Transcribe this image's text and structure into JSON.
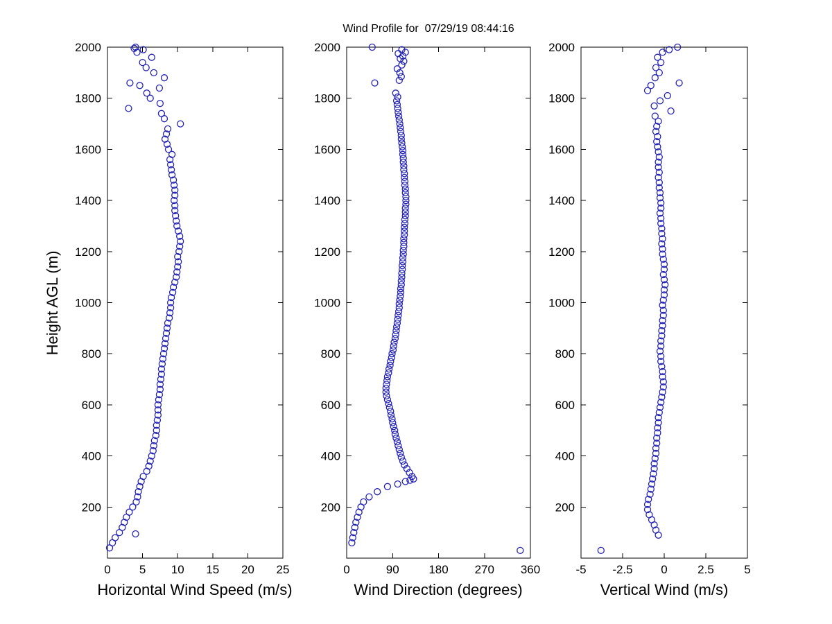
{
  "title": "Wind Profile for  07/29/19 08:44:16",
  "colors": {
    "marker": "#2222b4",
    "axis": "#000000",
    "background": "#ffffff"
  },
  "chart_data": [
    {
      "type": "scatter",
      "title": "Wind Profile for  07/29/19 08:44:16",
      "xlabel": "Horizontal Wind Speed (m/s)",
      "ylabel": "Height AGL (m)",
      "xlim": [
        0,
        25
      ],
      "ylim": [
        0,
        2000
      ],
      "xticks": [
        0,
        5,
        10,
        15,
        20,
        25
      ],
      "yticks": [
        0,
        200,
        400,
        600,
        800,
        1000,
        1200,
        1400,
        1600,
        1800,
        2000
      ],
      "marker": "open-circle",
      "grid": false,
      "points": [
        [
          0.3,
          40
        ],
        [
          0.7,
          60
        ],
        [
          1.1,
          80
        ],
        [
          4.0,
          95
        ],
        [
          1.7,
          100
        ],
        [
          2.1,
          120
        ],
        [
          2.4,
          140
        ],
        [
          2.7,
          160
        ],
        [
          3.1,
          180
        ],
        [
          3.6,
          200
        ],
        [
          4.1,
          220
        ],
        [
          4.3,
          240
        ],
        [
          4.4,
          260
        ],
        [
          4.6,
          280
        ],
        [
          4.8,
          300
        ],
        [
          5.1,
          320
        ],
        [
          5.6,
          340
        ],
        [
          5.9,
          360
        ],
        [
          6.1,
          380
        ],
        [
          6.3,
          400
        ],
        [
          6.5,
          420
        ],
        [
          6.6,
          440
        ],
        [
          6.7,
          460
        ],
        [
          6.9,
          480
        ],
        [
          7.0,
          500
        ],
        [
          7.0,
          520
        ],
        [
          7.1,
          540
        ],
        [
          7.2,
          560
        ],
        [
          7.2,
          580
        ],
        [
          7.2,
          600
        ],
        [
          7.3,
          620
        ],
        [
          7.4,
          640
        ],
        [
          7.5,
          660
        ],
        [
          7.5,
          680
        ],
        [
          7.6,
          700
        ],
        [
          7.7,
          720
        ],
        [
          7.7,
          740
        ],
        [
          7.8,
          760
        ],
        [
          7.9,
          780
        ],
        [
          8.0,
          800
        ],
        [
          8.1,
          820
        ],
        [
          8.2,
          840
        ],
        [
          8.3,
          860
        ],
        [
          8.4,
          880
        ],
        [
          8.5,
          900
        ],
        [
          8.6,
          920
        ],
        [
          8.8,
          940
        ],
        [
          8.9,
          960
        ],
        [
          9.0,
          980
        ],
        [
          9.0,
          1000
        ],
        [
          9.1,
          1020
        ],
        [
          9.3,
          1040
        ],
        [
          9.4,
          1060
        ],
        [
          9.6,
          1080
        ],
        [
          9.8,
          1100
        ],
        [
          9.9,
          1120
        ],
        [
          10.0,
          1140
        ],
        [
          10.1,
          1160
        ],
        [
          10.0,
          1180
        ],
        [
          10.2,
          1200
        ],
        [
          10.3,
          1220
        ],
        [
          10.4,
          1240
        ],
        [
          10.3,
          1260
        ],
        [
          10.1,
          1280
        ],
        [
          9.9,
          1300
        ],
        [
          9.8,
          1320
        ],
        [
          9.7,
          1340
        ],
        [
          9.6,
          1360
        ],
        [
          9.6,
          1380
        ],
        [
          9.5,
          1400
        ],
        [
          9.6,
          1420
        ],
        [
          9.6,
          1440
        ],
        [
          9.5,
          1460
        ],
        [
          9.4,
          1480
        ],
        [
          9.2,
          1500
        ],
        [
          9.1,
          1520
        ],
        [
          9.0,
          1540
        ],
        [
          8.9,
          1560
        ],
        [
          9.2,
          1580
        ],
        [
          8.7,
          1600
        ],
        [
          8.5,
          1620
        ],
        [
          8.2,
          1640
        ],
        [
          8.4,
          1660
        ],
        [
          8.6,
          1680
        ],
        [
          10.4,
          1700
        ],
        [
          8.1,
          1720
        ],
        [
          7.7,
          1740
        ],
        [
          3.0,
          1760
        ],
        [
          7.5,
          1780
        ],
        [
          6.1,
          1800
        ],
        [
          5.6,
          1820
        ],
        [
          7.4,
          1840
        ],
        [
          4.6,
          1850
        ],
        [
          3.2,
          1860
        ],
        [
          8.1,
          1880
        ],
        [
          6.6,
          1900
        ],
        [
          5.5,
          1920
        ],
        [
          5.0,
          1940
        ],
        [
          6.3,
          1960
        ],
        [
          4.2,
          1980
        ],
        [
          5.1,
          1990
        ],
        [
          3.8,
          1995
        ],
        [
          4.0,
          2000
        ]
      ]
    },
    {
      "type": "scatter",
      "xlabel": "Wind Direction (degrees)",
      "xlim": [
        0,
        360
      ],
      "ylim": [
        0,
        2000
      ],
      "xticks": [
        0,
        90,
        180,
        270,
        360
      ],
      "yticks": [
        0,
        200,
        400,
        600,
        800,
        1000,
        1200,
        1400,
        1600,
        1800,
        2000
      ],
      "marker": "open-circle",
      "grid": false,
      "points": [
        [
          340,
          30
        ],
        [
          10,
          60
        ],
        [
          12,
          80
        ],
        [
          14,
          100
        ],
        [
          16,
          120
        ],
        [
          18,
          140
        ],
        [
          21,
          160
        ],
        [
          24,
          180
        ],
        [
          28,
          200
        ],
        [
          33,
          220
        ],
        [
          44,
          240
        ],
        [
          60,
          260
        ],
        [
          80,
          280
        ],
        [
          100,
          290
        ],
        [
          115,
          300
        ],
        [
          124,
          305
        ],
        [
          131,
          310
        ],
        [
          128,
          320
        ],
        [
          123,
          335
        ],
        [
          118,
          350
        ],
        [
          113,
          365
        ],
        [
          110,
          380
        ],
        [
          107,
          395
        ],
        [
          105,
          410
        ],
        [
          103,
          425
        ],
        [
          101,
          440
        ],
        [
          99,
          455
        ],
        [
          97,
          470
        ],
        [
          95,
          485
        ],
        [
          94,
          500
        ],
        [
          92,
          515
        ],
        [
          90,
          530
        ],
        [
          89,
          545
        ],
        [
          87,
          560
        ],
        [
          86,
          575
        ],
        [
          84,
          590
        ],
        [
          82,
          605
        ],
        [
          80,
          620
        ],
        [
          78,
          635
        ],
        [
          77,
          650
        ],
        [
          77,
          665
        ],
        [
          78,
          680
        ],
        [
          79,
          695
        ],
        [
          80,
          710
        ],
        [
          82,
          725
        ],
        [
          83,
          740
        ],
        [
          85,
          755
        ],
        [
          86,
          770
        ],
        [
          88,
          785
        ],
        [
          89,
          800
        ],
        [
          91,
          815
        ],
        [
          92,
          830
        ],
        [
          93,
          845
        ],
        [
          95,
          860
        ],
        [
          96,
          875
        ],
        [
          97,
          890
        ],
        [
          98,
          905
        ],
        [
          99,
          920
        ],
        [
          100,
          935
        ],
        [
          101,
          950
        ],
        [
          102,
          965
        ],
        [
          103,
          980
        ],
        [
          103,
          995
        ],
        [
          104,
          1010
        ],
        [
          105,
          1025
        ],
        [
          106,
          1040
        ],
        [
          106,
          1055
        ],
        [
          107,
          1070
        ],
        [
          107,
          1085
        ],
        [
          108,
          1100
        ],
        [
          108,
          1115
        ],
        [
          109,
          1130
        ],
        [
          109,
          1145
        ],
        [
          110,
          1160
        ],
        [
          110,
          1175
        ],
        [
          111,
          1190
        ],
        [
          111,
          1205
        ],
        [
          112,
          1220
        ],
        [
          112,
          1235
        ],
        [
          112,
          1250
        ],
        [
          113,
          1265
        ],
        [
          113,
          1280
        ],
        [
          113,
          1295
        ],
        [
          114,
          1310
        ],
        [
          114,
          1325
        ],
        [
          115,
          1340
        ],
        [
          115,
          1355
        ],
        [
          115,
          1370
        ],
        [
          116,
          1385
        ],
        [
          116,
          1400
        ],
        [
          116,
          1415
        ],
        [
          115,
          1430
        ],
        [
          115,
          1445
        ],
        [
          114,
          1460
        ],
        [
          114,
          1475
        ],
        [
          113,
          1490
        ],
        [
          113,
          1505
        ],
        [
          112,
          1520
        ],
        [
          112,
          1535
        ],
        [
          111,
          1550
        ],
        [
          111,
          1565
        ],
        [
          110,
          1580
        ],
        [
          110,
          1595
        ],
        [
          109,
          1610
        ],
        [
          108,
          1625
        ],
        [
          107,
          1640
        ],
        [
          107,
          1655
        ],
        [
          106,
          1670
        ],
        [
          105,
          1685
        ],
        [
          104,
          1700
        ],
        [
          103,
          1715
        ],
        [
          102,
          1730
        ],
        [
          101,
          1745
        ],
        [
          100,
          1760
        ],
        [
          99,
          1775
        ],
        [
          98,
          1790
        ],
        [
          100,
          1805
        ],
        [
          96,
          1820
        ],
        [
          55,
          1860
        ],
        [
          103,
          1870
        ],
        [
          107,
          1885
        ],
        [
          104,
          1900
        ],
        [
          99,
          1915
        ],
        [
          108,
          1930
        ],
        [
          112,
          1945
        ],
        [
          105,
          1955
        ],
        [
          110,
          1965
        ],
        [
          101,
          1975
        ],
        [
          115,
          1980
        ],
        [
          108,
          1990
        ],
        [
          50,
          2000
        ]
      ]
    },
    {
      "type": "scatter",
      "xlabel": "Vertical Wind (m/s)",
      "xlim": [
        -5,
        5
      ],
      "ylim": [
        0,
        2000
      ],
      "xticks": [
        -5,
        -2.5,
        0,
        2.5,
        5
      ],
      "yticks": [
        0,
        200,
        400,
        600,
        800,
        1000,
        1200,
        1400,
        1600,
        1800,
        2000
      ],
      "marker": "open-circle",
      "grid": false,
      "points": [
        [
          -3.8,
          30
        ],
        [
          -0.35,
          90
        ],
        [
          -0.5,
          110
        ],
        [
          -0.6,
          130
        ],
        [
          -0.75,
          150
        ],
        [
          -0.9,
          170
        ],
        [
          -1.0,
          190
        ],
        [
          -1.0,
          210
        ],
        [
          -0.95,
          230
        ],
        [
          -0.85,
          250
        ],
        [
          -0.8,
          270
        ],
        [
          -0.75,
          290
        ],
        [
          -0.7,
          310
        ],
        [
          -0.65,
          330
        ],
        [
          -0.6,
          350
        ],
        [
          -0.6,
          370
        ],
        [
          -0.55,
          390
        ],
        [
          -0.5,
          410
        ],
        [
          -0.5,
          430
        ],
        [
          -0.45,
          450
        ],
        [
          -0.45,
          470
        ],
        [
          -0.4,
          490
        ],
        [
          -0.4,
          510
        ],
        [
          -0.35,
          530
        ],
        [
          -0.35,
          550
        ],
        [
          -0.3,
          570
        ],
        [
          -0.25,
          590
        ],
        [
          -0.2,
          610
        ],
        [
          -0.15,
          630
        ],
        [
          -0.1,
          650
        ],
        [
          -0.05,
          670
        ],
        [
          -0.05,
          690
        ],
        [
          -0.1,
          710
        ],
        [
          -0.1,
          730
        ],
        [
          -0.15,
          750
        ],
        [
          -0.2,
          770
        ],
        [
          -0.2,
          790
        ],
        [
          -0.25,
          810
        ],
        [
          -0.2,
          830
        ],
        [
          -0.2,
          850
        ],
        [
          -0.15,
          870
        ],
        [
          -0.15,
          890
        ],
        [
          -0.1,
          910
        ],
        [
          -0.1,
          930
        ],
        [
          -0.05,
          950
        ],
        [
          -0.05,
          970
        ],
        [
          -0.1,
          990
        ],
        [
          -0.05,
          1010
        ],
        [
          0.0,
          1030
        ],
        [
          0.0,
          1050
        ],
        [
          0.05,
          1070
        ],
        [
          0.0,
          1090
        ],
        [
          -0.05,
          1110
        ],
        [
          0.0,
          1130
        ],
        [
          0.0,
          1150
        ],
        [
          -0.05,
          1170
        ],
        [
          -0.1,
          1190
        ],
        [
          -0.1,
          1210
        ],
        [
          -0.15,
          1230
        ],
        [
          -0.1,
          1250
        ],
        [
          -0.15,
          1270
        ],
        [
          -0.15,
          1290
        ],
        [
          -0.2,
          1310
        ],
        [
          -0.2,
          1330
        ],
        [
          -0.25,
          1350
        ],
        [
          -0.2,
          1370
        ],
        [
          -0.2,
          1390
        ],
        [
          -0.25,
          1410
        ],
        [
          -0.25,
          1430
        ],
        [
          -0.3,
          1450
        ],
        [
          -0.3,
          1470
        ],
        [
          -0.35,
          1490
        ],
        [
          -0.3,
          1510
        ],
        [
          -0.35,
          1530
        ],
        [
          -0.35,
          1550
        ],
        [
          -0.3,
          1570
        ],
        [
          -0.35,
          1590
        ],
        [
          -0.4,
          1610
        ],
        [
          -0.45,
          1630
        ],
        [
          -0.4,
          1650
        ],
        [
          -0.5,
          1670
        ],
        [
          -0.45,
          1690
        ],
        [
          -0.35,
          1710
        ],
        [
          -0.55,
          1730
        ],
        [
          0.4,
          1750
        ],
        [
          -0.6,
          1770
        ],
        [
          -0.25,
          1790
        ],
        [
          0.2,
          1810
        ],
        [
          -1.0,
          1830
        ],
        [
          -0.8,
          1850
        ],
        [
          0.9,
          1860
        ],
        [
          -0.55,
          1880
        ],
        [
          -0.3,
          1900
        ],
        [
          -0.5,
          1920
        ],
        [
          -0.2,
          1940
        ],
        [
          -0.4,
          1960
        ],
        [
          -0.1,
          1980
        ],
        [
          0.3,
          1990
        ],
        [
          0.8,
          2000
        ]
      ]
    }
  ]
}
